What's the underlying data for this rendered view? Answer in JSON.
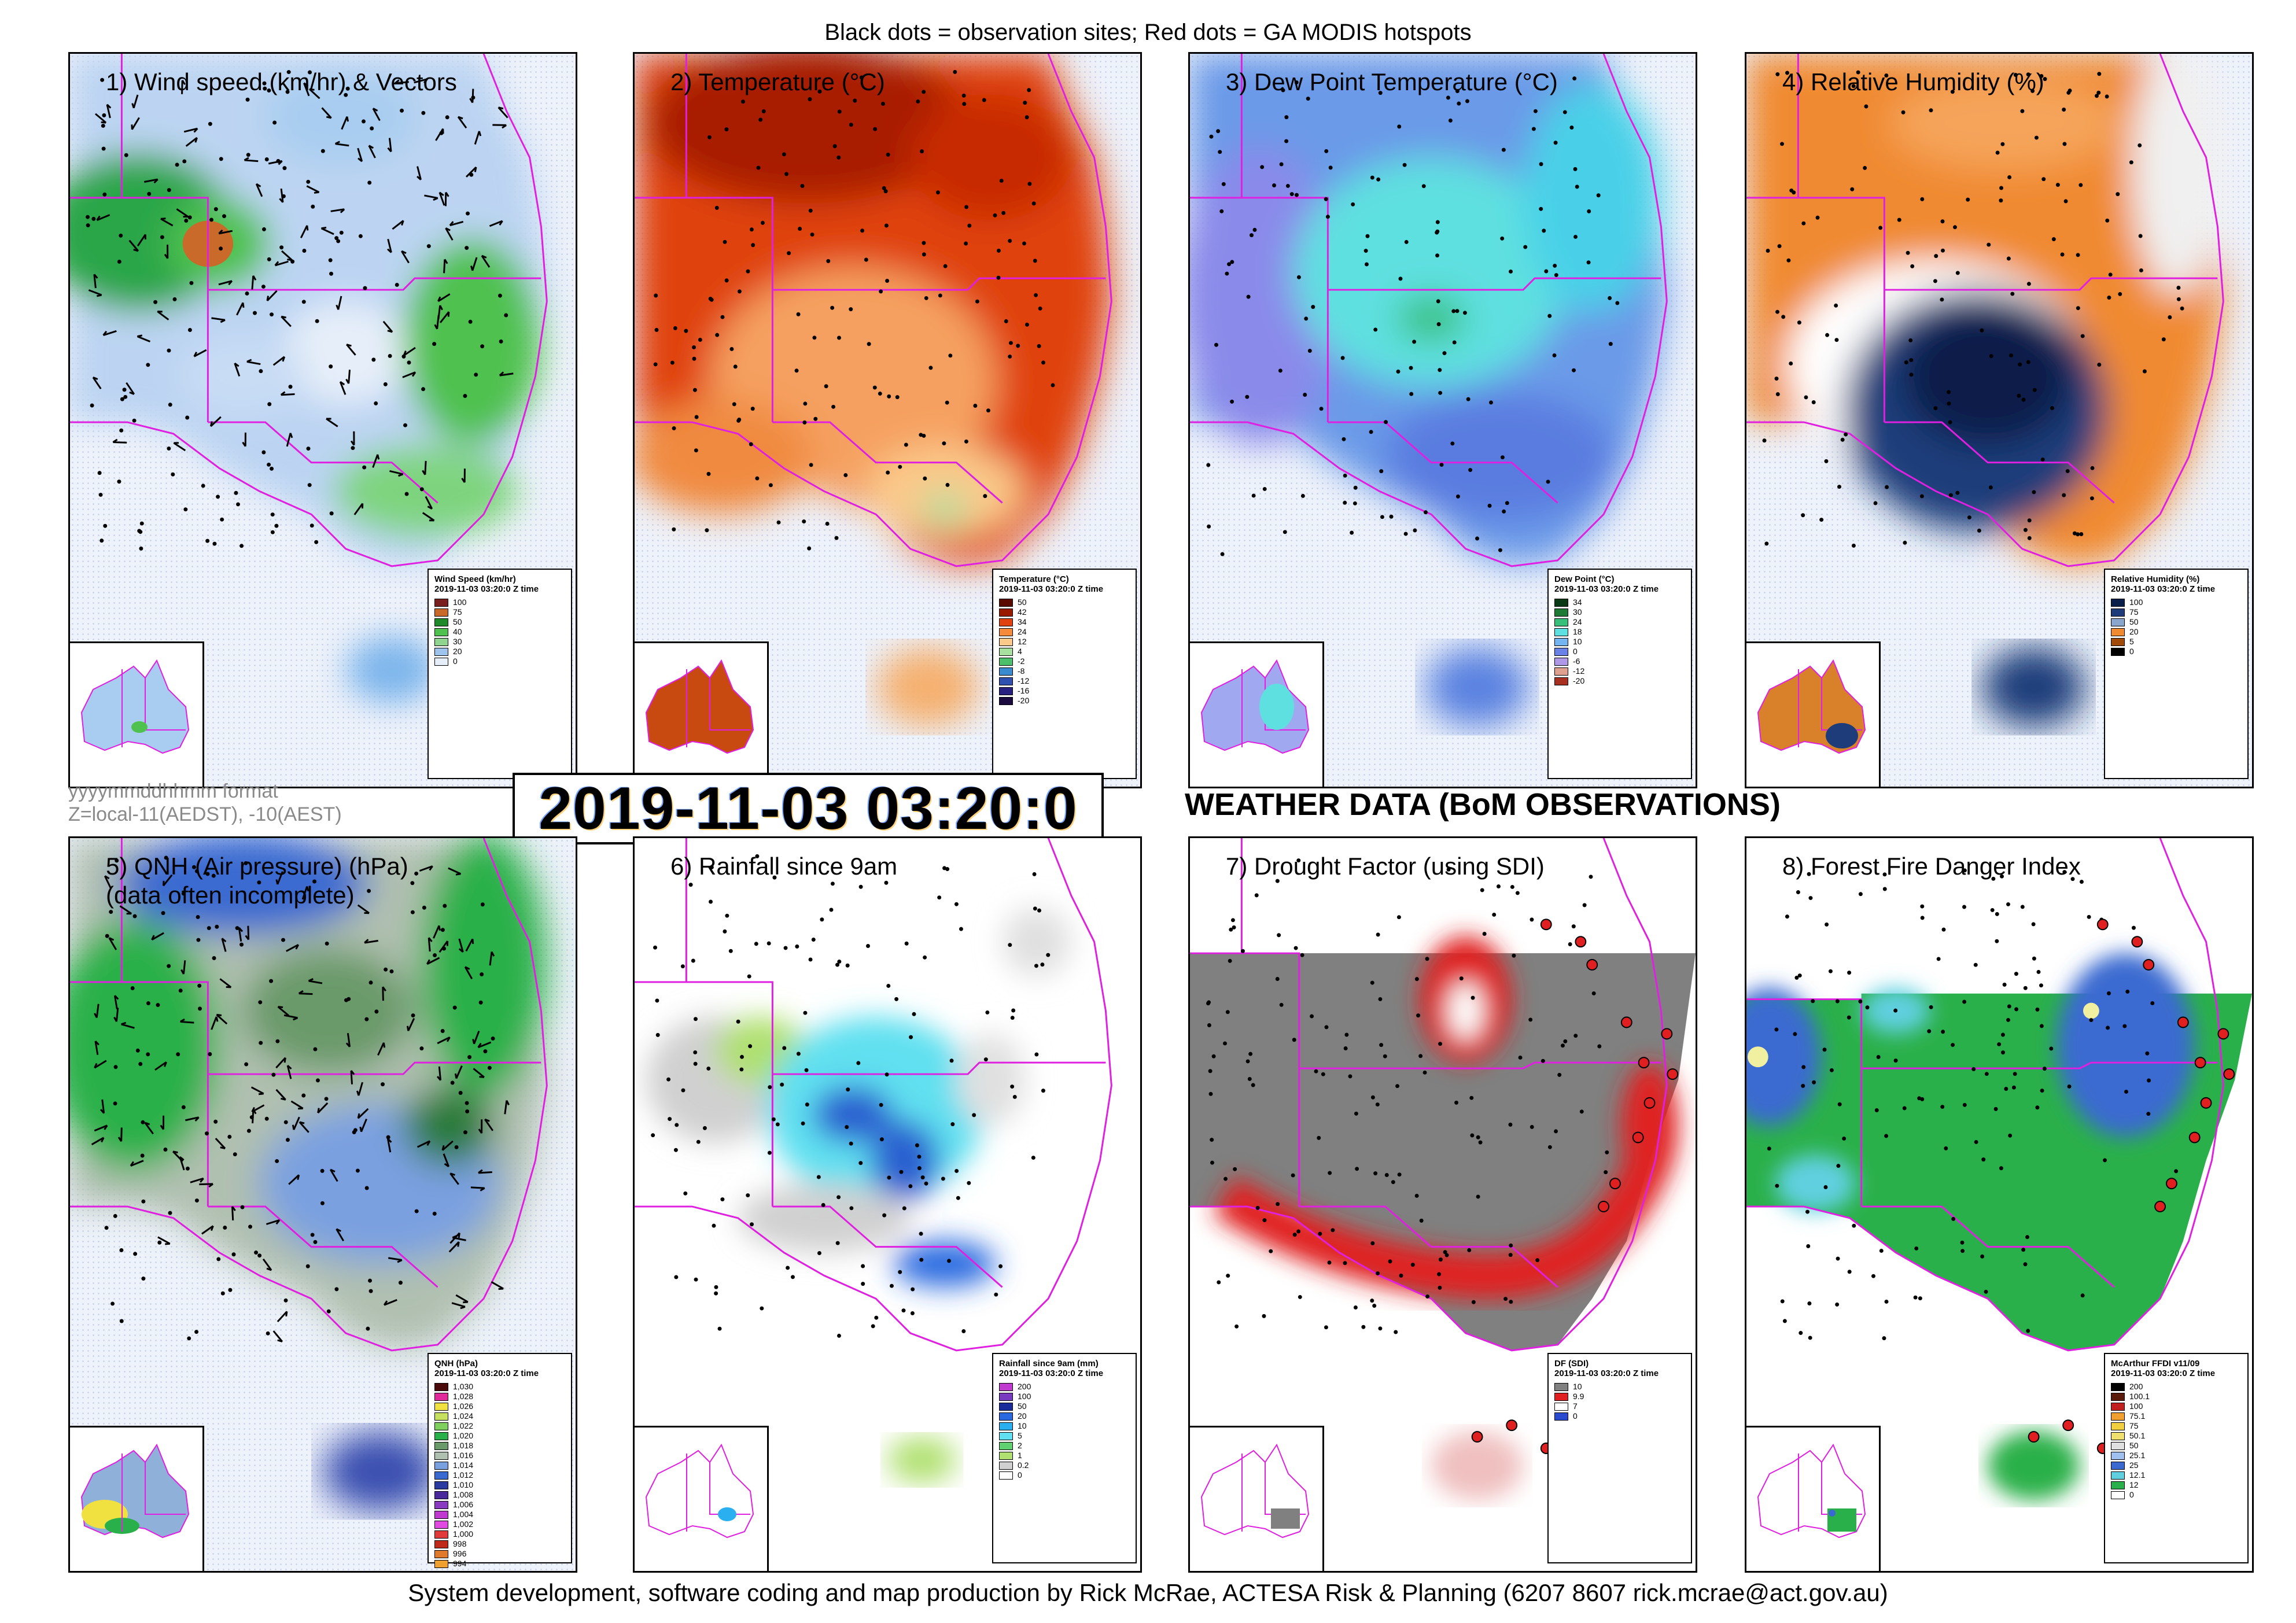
{
  "header": "Black dots = observation sites; Red dots = GA MODIS hotspots",
  "footer": "System development, software coding and map production by Rick McRae, ACTESA Risk & Planning (6207 8607 rick.mcrae@act.gov.au)",
  "format_note": {
    "line1": "yyyymmddhhmm format",
    "line2": "Z=local-11(AEDST), -10(AEST)"
  },
  "timestamp": "2019-11-03 03:20:0",
  "section_title": "WEATHER DATA (BoM OBSERVATIONS)",
  "panels": [
    {
      "title": "1) Wind speed (km/hr) & Vectors",
      "title2": "",
      "legend": {
        "title": "Wind Speed (km/hr)",
        "time": "2019-11-03 03:20:0 Z time",
        "entries": [
          {
            "label": "100",
            "color": "#7a1f1f"
          },
          {
            "label": "75",
            "color": "#c96a2a"
          },
          {
            "label": "50",
            "color": "#1f8a2a"
          },
          {
            "label": "40",
            "color": "#4fc14f"
          },
          {
            "label": "30",
            "color": "#8fd48f"
          },
          {
            "label": "20",
            "color": "#9ec4ee"
          },
          {
            "label": "0",
            "color": "#e6eef9"
          }
        ]
      }
    },
    {
      "title": "2) Temperature (°C)",
      "title2": "",
      "legend": {
        "title": "Temperature (°C)",
        "time": "2019-11-03 03:20:0 Z time",
        "entries": [
          {
            "label": "50",
            "color": "#5a0a00"
          },
          {
            "label": "42",
            "color": "#9a1a00"
          },
          {
            "label": "34",
            "color": "#e0430f"
          },
          {
            "label": "24",
            "color": "#f58a3a"
          },
          {
            "label": "12",
            "color": "#fbc98a"
          },
          {
            "label": "4",
            "color": "#a8e0a0"
          },
          {
            "label": "-2",
            "color": "#4cbf6a"
          },
          {
            "label": "-8",
            "color": "#3a8ad0"
          },
          {
            "label": "-12",
            "color": "#3050b0"
          },
          {
            "label": "-16",
            "color": "#282080"
          },
          {
            "label": "-20",
            "color": "#1a0a40"
          }
        ]
      }
    },
    {
      "title": "3) Dew Point Temperature (°C)",
      "title2": "",
      "legend": {
        "title": "Dew Point (°C)",
        "time": "2019-11-03 03:20:0 Z time",
        "entries": [
          {
            "label": "34",
            "color": "#0a3a14"
          },
          {
            "label": "30",
            "color": "#1e7a34"
          },
          {
            "label": "24",
            "color": "#38c07a"
          },
          {
            "label": "18",
            "color": "#5ee0e0"
          },
          {
            "label": "10",
            "color": "#74b4f0"
          },
          {
            "label": "0",
            "color": "#6a82e8"
          },
          {
            "label": "-6",
            "color": "#b098e8"
          },
          {
            "label": "-12",
            "color": "#e0a090"
          },
          {
            "label": "-20",
            "color": "#a83020"
          }
        ]
      }
    },
    {
      "title": "4) Relative Humidity (%)",
      "title2": "",
      "legend": {
        "title": "Relative Humidity (%)",
        "time": "2019-11-03 03:20:0 Z time",
        "entries": [
          {
            "label": "100",
            "color": "#0a1e4a"
          },
          {
            "label": "75",
            "color": "#1e3c7a"
          },
          {
            "label": "50",
            "color": "#8aa6cc"
          },
          {
            "label": "20",
            "color": "#f08a30"
          },
          {
            "label": "5",
            "color": "#a04a0a"
          },
          {
            "label": "0",
            "color": "#000000"
          }
        ]
      }
    },
    {
      "title": "5) QNH (Air pressure) (hPa)",
      "title2": "(data often incomplete)",
      "legend": {
        "title": "QNH (hPa)",
        "time": "2019-11-03 03:20:0 Z time",
        "entries": [
          {
            "label": "1,030",
            "color": "#4a0a0a"
          },
          {
            "label": "1,028",
            "color": "#e02a9a"
          },
          {
            "label": "1,026",
            "color": "#f0e040"
          },
          {
            "label": "1,024",
            "color": "#c8e060"
          },
          {
            "label": "1,022",
            "color": "#80d060"
          },
          {
            "label": "1,020",
            "color": "#2ab04a"
          },
          {
            "label": "1,018",
            "color": "#6a9a6a"
          },
          {
            "label": "1,016",
            "color": "#b0c0b0"
          },
          {
            "label": "1,014",
            "color": "#7aa0e0"
          },
          {
            "label": "1,012",
            "color": "#3a6ad0"
          },
          {
            "label": "1,010",
            "color": "#2a3aa0"
          },
          {
            "label": "1,008",
            "color": "#4a2a9a"
          },
          {
            "label": "1,006",
            "color": "#8a3ac0"
          },
          {
            "label": "1,004",
            "color": "#c03ad0"
          },
          {
            "label": "1,002",
            "color": "#e04ae0"
          },
          {
            "label": "1,000",
            "color": "#e03a3a"
          },
          {
            "label": "998",
            "color": "#c02a1a"
          },
          {
            "label": "996",
            "color": "#e07a2a"
          },
          {
            "label": "994",
            "color": "#f0a030"
          }
        ]
      }
    },
    {
      "title": "6) Rainfall since 9am",
      "title2": "",
      "legend": {
        "title": "Rainfall since 9am (mm)",
        "time": "2019-11-03 03:20:0 Z time",
        "entries": [
          {
            "label": "200",
            "color": "#c03ad0"
          },
          {
            "label": "100",
            "color": "#7a3ac0"
          },
          {
            "label": "50",
            "color": "#1a2a9a"
          },
          {
            "label": "20",
            "color": "#2a6ae0"
          },
          {
            "label": "10",
            "color": "#2ab0f0"
          },
          {
            "label": "5",
            "color": "#60e0f0"
          },
          {
            "label": "2",
            "color": "#60d070"
          },
          {
            "label": "1",
            "color": "#b0e070"
          },
          {
            "label": "0.2",
            "color": "#d0d0d0"
          },
          {
            "label": "0",
            "color": "#ffffff"
          }
        ]
      }
    },
    {
      "title": "7) Drought Factor (using SDI)",
      "title2": "",
      "legend": {
        "title": "DF (SDI)",
        "time": "2019-11-03 03:20:0 Z time",
        "entries": [
          {
            "label": "10",
            "color": "#808080"
          },
          {
            "label": "9.9",
            "color": "#e02020"
          },
          {
            "label": "7",
            "color": "#ffffff"
          },
          {
            "label": "0",
            "color": "#2a4ad0"
          }
        ]
      }
    },
    {
      "title": "8) Forest Fire Danger Index",
      "title2": "",
      "legend": {
        "title": "McArthur FFDI v11/09",
        "time": "2019-11-03 03:20:0 Z time",
        "entries": [
          {
            "label": "200",
            "color": "#000000"
          },
          {
            "label": "100.1",
            "color": "#5a1a0a"
          },
          {
            "label": "100",
            "color": "#c02020"
          },
          {
            "label": "75.1",
            "color": "#f0a030"
          },
          {
            "label": "75",
            "color": "#f0d040"
          },
          {
            "label": "50.1",
            "color": "#f0e070"
          },
          {
            "label": "50",
            "color": "#e0e0e0"
          },
          {
            "label": "25.1",
            "color": "#a0c0f0"
          },
          {
            "label": "25",
            "color": "#3a6ad0"
          },
          {
            "label": "12.1",
            "color": "#60d0e0"
          },
          {
            "label": "12",
            "color": "#2ab04a"
          },
          {
            "label": "0",
            "color": "#ffffff"
          }
        ]
      }
    }
  ]
}
